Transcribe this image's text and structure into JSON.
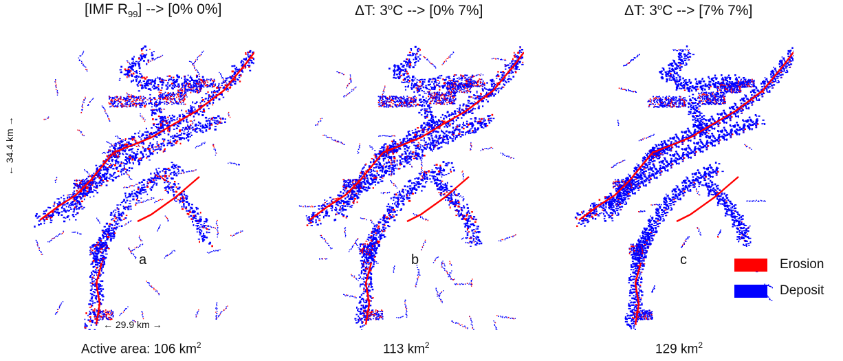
{
  "panels": [
    {
      "id": "a",
      "title_prefix": "[IMF R",
      "title_sub": "99",
      "title_suffix": "] --> [0% 0%]",
      "label": "a",
      "area_text": "Active area: 106 km",
      "area_unit_sup": "2",
      "active_area_km2": 106
    },
    {
      "id": "b",
      "title_prefix": "ΔT: 3",
      "title_sup": "o",
      "title_suffix": "C --> [0% 7%]",
      "label": "b",
      "area_text": "113 km",
      "area_unit_sup": "2",
      "active_area_km2": 113
    },
    {
      "id": "c",
      "title_prefix": "ΔT: 3",
      "title_sup": "o",
      "title_suffix": "C --> [7% 7%]",
      "label": "c",
      "area_text": "129 km",
      "area_unit_sup": "2",
      "active_area_km2": 129
    }
  ],
  "scale": {
    "horizontal": "← 29.9 km →",
    "vertical": "← 34.4 km →"
  },
  "legend": [
    {
      "label": "Erosion",
      "color": "#ff0000"
    },
    {
      "label": "Deposit",
      "color": "#0000ff"
    }
  ]
}
